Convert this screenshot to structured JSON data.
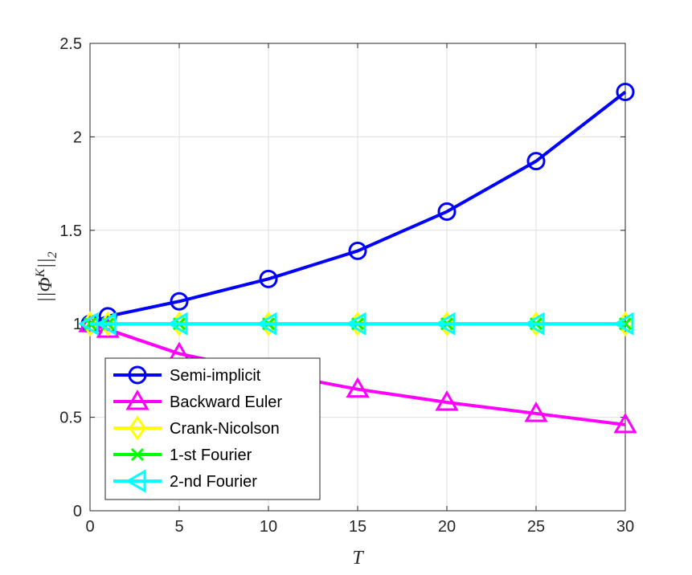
{
  "chart_data": {
    "type": "line",
    "title": "",
    "xlabel": "T",
    "ylabel": "||Φ^K||_2",
    "xlim": [
      0,
      30
    ],
    "ylim": [
      0,
      2.5
    ],
    "xticks": [
      0,
      5,
      10,
      15,
      20,
      25,
      30
    ],
    "yticks": [
      0,
      0.5,
      1,
      1.5,
      2,
      2.5
    ],
    "xtick_labels": [
      "0",
      "5",
      "10",
      "15",
      "20",
      "25",
      "30"
    ],
    "ytick_labels": [
      "0",
      "0.5",
      "1",
      "1.5",
      "2",
      "2.5"
    ],
    "grid": true,
    "legend_position": "bottom-left",
    "x": [
      0,
      1,
      5,
      10,
      15,
      20,
      25,
      30
    ],
    "series": [
      {
        "name": "Semi-implicit",
        "color": "#0000ff",
        "marker": "circle",
        "values": [
          1.0,
          1.04,
          1.12,
          1.24,
          1.39,
          1.6,
          1.87,
          2.24
        ]
      },
      {
        "name": "Backward Euler",
        "color": "#ff00ff",
        "marker": "triangle-up",
        "values": [
          1.0,
          0.97,
          0.84,
          0.74,
          0.65,
          0.58,
          0.52,
          0.46
        ]
      },
      {
        "name": "Crank-Nicolson",
        "color": "#ffff00",
        "marker": "diamond",
        "values": [
          1.0,
          1.0,
          1.0,
          1.0,
          1.0,
          1.0,
          1.0,
          1.0
        ]
      },
      {
        "name": "1-st Fourier",
        "color": "#00ff00",
        "marker": "x",
        "values": [
          1.0,
          1.0,
          1.0,
          1.0,
          1.0,
          1.0,
          1.0,
          1.0
        ]
      },
      {
        "name": "2-nd Fourier",
        "color": "#00ffff",
        "marker": "triangle-left",
        "values": [
          1.0,
          1.0,
          1.0,
          1.0,
          1.0,
          1.0,
          1.0,
          1.0
        ]
      }
    ]
  }
}
